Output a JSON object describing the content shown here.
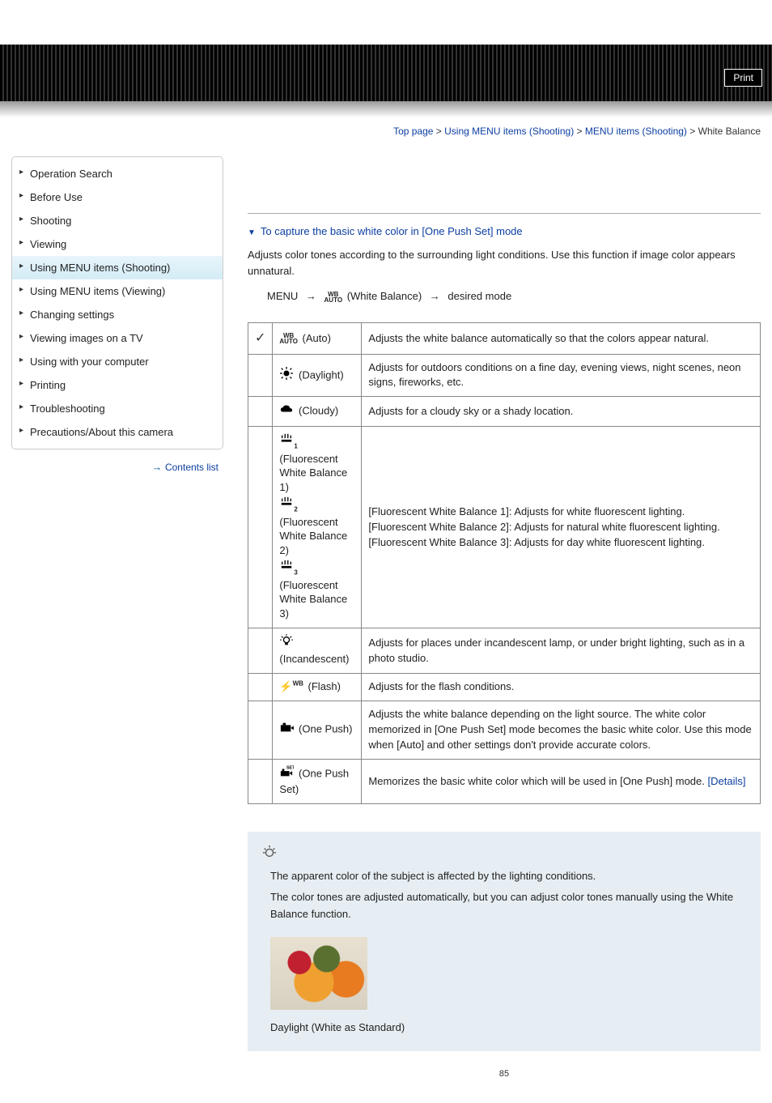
{
  "header": {
    "print": "Print"
  },
  "breadcrumb": {
    "top": "Top page",
    "l1": "Using MENU items (Shooting)",
    "l2": "MENU items (Shooting)",
    "current": "White Balance"
  },
  "sidebar": {
    "items": [
      "Operation Search",
      "Before Use",
      "Shooting",
      "Viewing",
      "Using MENU items (Shooting)",
      "Using MENU items (Viewing)",
      "Changing settings",
      "Viewing images on a TV",
      "Using with your computer",
      "Printing",
      "Troubleshooting",
      "Precautions/About this camera"
    ],
    "active_index": 4,
    "contents_list": "Contents list"
  },
  "main": {
    "anchor": "To capture the basic white color in [One Push Set] mode",
    "intro": "Adjusts color tones according to the surrounding light conditions. Use this function if image color appears unnatural.",
    "menu_line": {
      "menu": "MENU",
      "label": "(White Balance)",
      "dest": "desired mode"
    },
    "table": {
      "rows": [
        {
          "label": "(Auto)",
          "desc": "Adjusts the white balance automatically so that the colors appear natural.",
          "checked": true,
          "icon": "wb-auto"
        },
        {
          "label": "(Daylight)",
          "desc": "Adjusts for outdoors conditions on a fine day, evening views, night scenes, neon signs, fireworks, etc.",
          "icon": "daylight"
        },
        {
          "label": "(Cloudy)",
          "desc": "Adjusts for a cloudy sky or a shady location.",
          "icon": "cloudy"
        },
        {
          "labels": [
            "(Fluorescent White Balance 1)",
            "(Fluorescent White Balance 2)",
            "(Fluorescent White Balance 3)"
          ],
          "desc": "[Fluorescent White Balance 1]: Adjusts for white fluorescent lighting.\n[Fluorescent White Balance 2]: Adjusts for natural white fluorescent lighting.\n[Fluorescent White Balance 3]: Adjusts for day white fluorescent lighting.",
          "icon": "fluorescent"
        },
        {
          "label": "(Incandescent)",
          "desc": "Adjusts for places under incandescent lamp, or under bright lighting, such as in a photo studio.",
          "icon": "incandescent"
        },
        {
          "label": "(Flash)",
          "desc": "Adjusts for the flash conditions.",
          "icon": "flash"
        },
        {
          "label": "(One Push)",
          "desc": "Adjusts the white balance depending on the light source. The white color memorized in [One Push Set] mode becomes the basic white color. Use this mode when [Auto] and other settings don't provide accurate colors.",
          "icon": "onepush"
        },
        {
          "label": "(One Push Set)",
          "desc": "Memorizes the basic white color which will be used in [One Push] mode.",
          "link": "[Details]",
          "icon": "onepushset"
        }
      ]
    },
    "tip": {
      "p1": "The apparent color of the subject is affected by the lighting conditions.",
      "p2": "The color tones are adjusted automatically, but you can adjust color tones manually using the White Balance function.",
      "caption": "Daylight (White as Standard)"
    },
    "page_number": "85"
  }
}
